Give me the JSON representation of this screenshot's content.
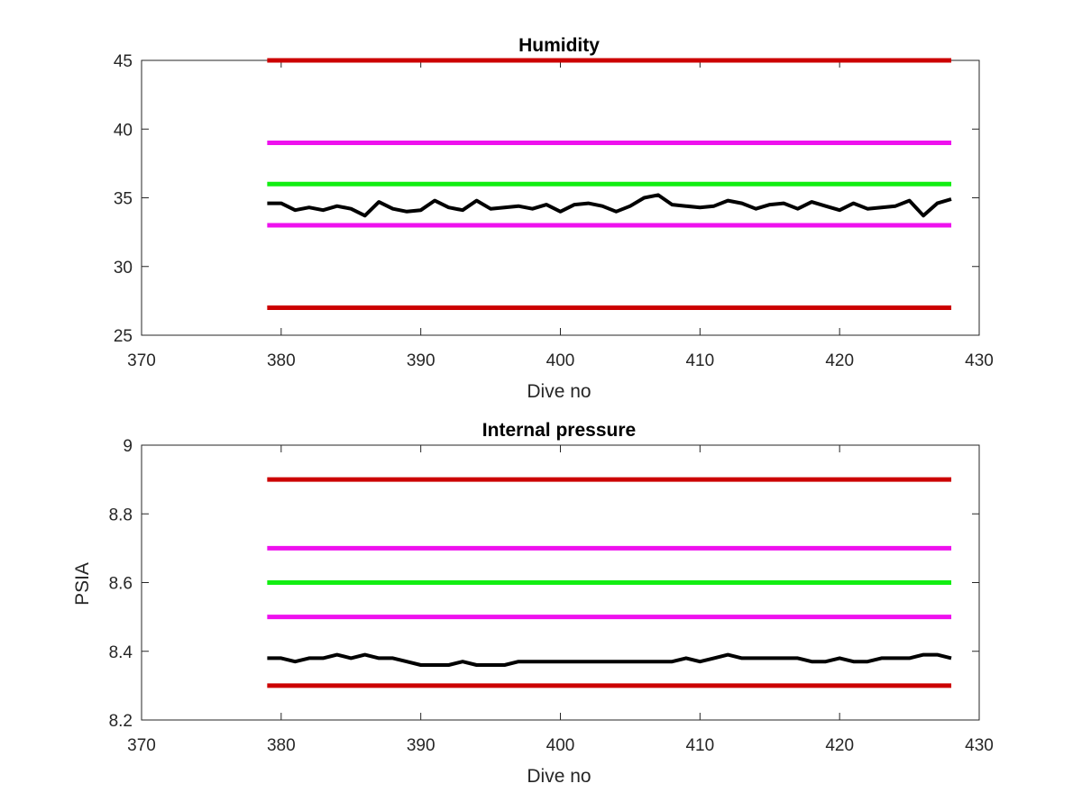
{
  "chart_data": [
    {
      "type": "line",
      "title": "Humidity",
      "xlabel": "Dive no",
      "ylabel": "",
      "xlim": [
        370,
        430
      ],
      "ylim": [
        25,
        45
      ],
      "xticks": [
        370,
        380,
        390,
        400,
        410,
        420,
        430
      ],
      "xtick_labels": [
        "370",
        "380",
        "390",
        "400",
        "410",
        "420",
        "430"
      ],
      "yticks": [
        25,
        30,
        35,
        40,
        45
      ],
      "ytick_labels": [
        "25",
        "30",
        "35",
        "40",
        "45"
      ],
      "grid": false,
      "legend": "none",
      "limit_lines": [
        {
          "y": 45,
          "x": [
            379,
            428
          ],
          "color": "#cc0000"
        },
        {
          "y": 39,
          "x": [
            379,
            428
          ],
          "color": "#ee11ee"
        },
        {
          "y": 36,
          "x": [
            379,
            428
          ],
          "color": "#11ee11"
        },
        {
          "y": 33,
          "x": [
            379,
            428
          ],
          "color": "#ee11ee"
        },
        {
          "y": 27,
          "x": [
            379,
            428
          ],
          "color": "#cc0000"
        }
      ],
      "series": [
        {
          "color": "#000000",
          "x": [
            379,
            380,
            381,
            382,
            383,
            384,
            385,
            386,
            387,
            388,
            389,
            390,
            391,
            392,
            393,
            394,
            395,
            396,
            397,
            398,
            399,
            400,
            401,
            402,
            403,
            404,
            405,
            406,
            407,
            408,
            409,
            410,
            411,
            412,
            413,
            414,
            415,
            416,
            417,
            418,
            419,
            420,
            421,
            422,
            423,
            424,
            425,
            426,
            427,
            428
          ],
          "y": [
            34.6,
            34.6,
            34.1,
            34.3,
            34.1,
            34.4,
            34.2,
            33.7,
            34.7,
            34.2,
            34.0,
            34.1,
            34.8,
            34.3,
            34.1,
            34.8,
            34.2,
            34.3,
            34.4,
            34.2,
            34.5,
            34.0,
            34.5,
            34.6,
            34.4,
            34.0,
            34.4,
            35.0,
            35.2,
            34.5,
            34.4,
            34.3,
            34.4,
            34.8,
            34.6,
            34.2,
            34.5,
            34.6,
            34.2,
            34.7,
            34.4,
            34.1,
            34.6,
            34.2,
            34.3,
            34.4,
            34.8,
            33.7,
            34.6,
            34.9
          ]
        }
      ]
    },
    {
      "type": "line",
      "title": "Internal pressure",
      "xlabel": "Dive no",
      "ylabel": "PSIA",
      "xlim": [
        370,
        430
      ],
      "ylim": [
        8.2,
        9
      ],
      "xticks": [
        370,
        380,
        390,
        400,
        410,
        420,
        430
      ],
      "xtick_labels": [
        "370",
        "380",
        "390",
        "400",
        "410",
        "420",
        "430"
      ],
      "yticks": [
        8.2,
        8.4,
        8.6,
        8.8,
        9
      ],
      "ytick_labels": [
        "8.2",
        "8.4",
        "8.6",
        "8.8",
        "9"
      ],
      "grid": false,
      "legend": "none",
      "limit_lines": [
        {
          "y": 8.9,
          "x": [
            379,
            428
          ],
          "color": "#cc0000"
        },
        {
          "y": 8.7,
          "x": [
            379,
            428
          ],
          "color": "#ee11ee"
        },
        {
          "y": 8.6,
          "x": [
            379,
            428
          ],
          "color": "#11ee11"
        },
        {
          "y": 8.5,
          "x": [
            379,
            428
          ],
          "color": "#ee11ee"
        },
        {
          "y": 8.3,
          "x": [
            379,
            428
          ],
          "color": "#cc0000"
        }
      ],
      "series": [
        {
          "color": "#000000",
          "x": [
            379,
            380,
            381,
            382,
            383,
            384,
            385,
            386,
            387,
            388,
            389,
            390,
            391,
            392,
            393,
            394,
            395,
            396,
            397,
            398,
            399,
            400,
            401,
            402,
            403,
            404,
            405,
            406,
            407,
            408,
            409,
            410,
            411,
            412,
            413,
            414,
            415,
            416,
            417,
            418,
            419,
            420,
            421,
            422,
            423,
            424,
            425,
            426,
            427,
            428
          ],
          "y": [
            8.38,
            8.38,
            8.37,
            8.38,
            8.38,
            8.39,
            8.38,
            8.39,
            8.38,
            8.38,
            8.37,
            8.36,
            8.36,
            8.36,
            8.37,
            8.36,
            8.36,
            8.36,
            8.37,
            8.37,
            8.37,
            8.37,
            8.37,
            8.37,
            8.37,
            8.37,
            8.37,
            8.37,
            8.37,
            8.37,
            8.38,
            8.37,
            8.38,
            8.39,
            8.38,
            8.38,
            8.38,
            8.38,
            8.38,
            8.37,
            8.37,
            8.38,
            8.37,
            8.37,
            8.38,
            8.38,
            8.38,
            8.39,
            8.39,
            8.38
          ]
        }
      ]
    }
  ]
}
